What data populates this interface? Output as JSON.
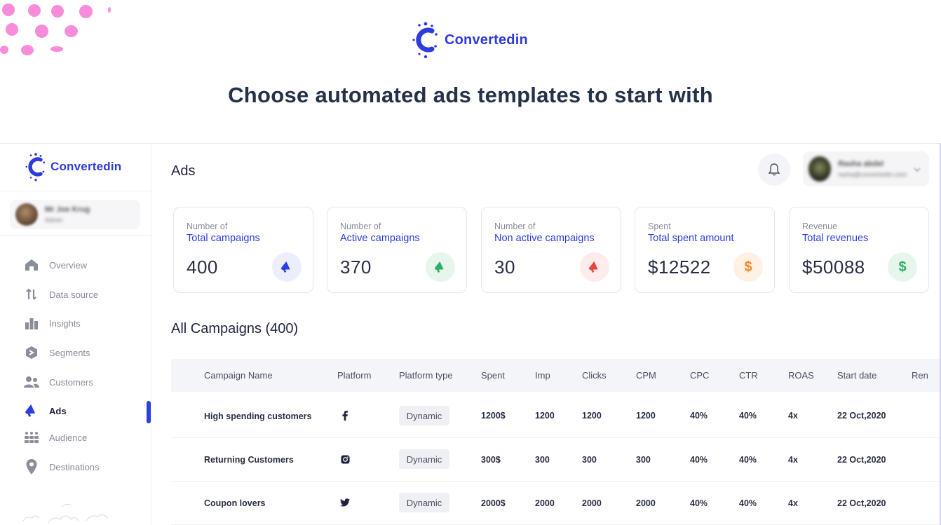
{
  "brand": {
    "name": "Convertedin",
    "accent": "#2c3ee0"
  },
  "headline": "Choose automated ads templates to start with",
  "sidebar": {
    "brand_name": "Convertedin",
    "user_name": "Mr Joe Krug",
    "user_role": "Admin",
    "items": [
      {
        "label": "Overview",
        "icon": "home-icon"
      },
      {
        "label": "Data source",
        "icon": "data-source-icon"
      },
      {
        "label": "Insights",
        "icon": "bar-chart-icon"
      },
      {
        "label": "Segments",
        "icon": "segments-icon"
      },
      {
        "label": "Customers",
        "icon": "users-icon"
      },
      {
        "label": "Ads",
        "icon": "megaphone-icon",
        "active": true
      },
      {
        "label": "Audience",
        "icon": "audience-icon"
      },
      {
        "label": "Destinations",
        "icon": "location-pin-icon"
      }
    ]
  },
  "header": {
    "title": "Ads",
    "profile_name": "Rasha abdel",
    "profile_email": "rasha@convertedin.com"
  },
  "stats": [
    {
      "label1": "Number of",
      "label2": "Total campaigns",
      "value": "400",
      "icon": "megaphone-icon",
      "color": "#2c3ee0",
      "bg": "#eceefc"
    },
    {
      "label1": "Number of",
      "label2": "Active campaigns",
      "value": "370",
      "icon": "megaphone-icon",
      "color": "#2fae66",
      "bg": "#e6f6ec"
    },
    {
      "label1": "Number of",
      "label2": "Non active campaigns",
      "value": "30",
      "icon": "megaphone-icon",
      "color": "#e8453c",
      "bg": "#fdeceb"
    },
    {
      "label1": "Spent",
      "label2": "Total spent amount",
      "value": "$12522",
      "icon": "dollar-icon",
      "symbol": "$",
      "color": "#f08a2c",
      "bg": "#fdf0e4"
    },
    {
      "label1": "Revenue",
      "label2": "Total revenues",
      "value": "$50088",
      "icon": "dollar-icon",
      "symbol": "$",
      "color": "#2fae66",
      "bg": "#e6f6ec"
    }
  ],
  "table": {
    "title": "All Campaigns (400)",
    "columns": [
      "Campaign Name",
      "Platform",
      "Platform type",
      "Spent",
      "Imp",
      "Clicks",
      "CPM",
      "CPC",
      "CTR",
      "ROAS",
      "Start date",
      "Ren"
    ],
    "rows": [
      {
        "name": "High spending customers",
        "platform": "facebook-icon",
        "type": "Dynamic",
        "spent": "1200$",
        "imp": "1200",
        "clicks": "1200",
        "cpm": "1200",
        "cpc": "40%",
        "ctr": "40%",
        "roas": "4x",
        "start": "22 Oct,2020"
      },
      {
        "name": "Returning Customers",
        "platform": "instagram-icon",
        "type": "Dynamic",
        "spent": "300$",
        "imp": "300",
        "clicks": "300",
        "cpm": "300",
        "cpc": "40%",
        "ctr": "40%",
        "roas": "4x",
        "start": "22 Oct,2020"
      },
      {
        "name": "Coupon lovers",
        "platform": "twitter-icon",
        "type": "Dynamic",
        "spent": "2000$",
        "imp": "2000",
        "clicks": "2000",
        "cpm": "2000",
        "cpc": "40%",
        "ctr": "40%",
        "roas": "4x",
        "start": "22 Oct,2020"
      }
    ]
  }
}
